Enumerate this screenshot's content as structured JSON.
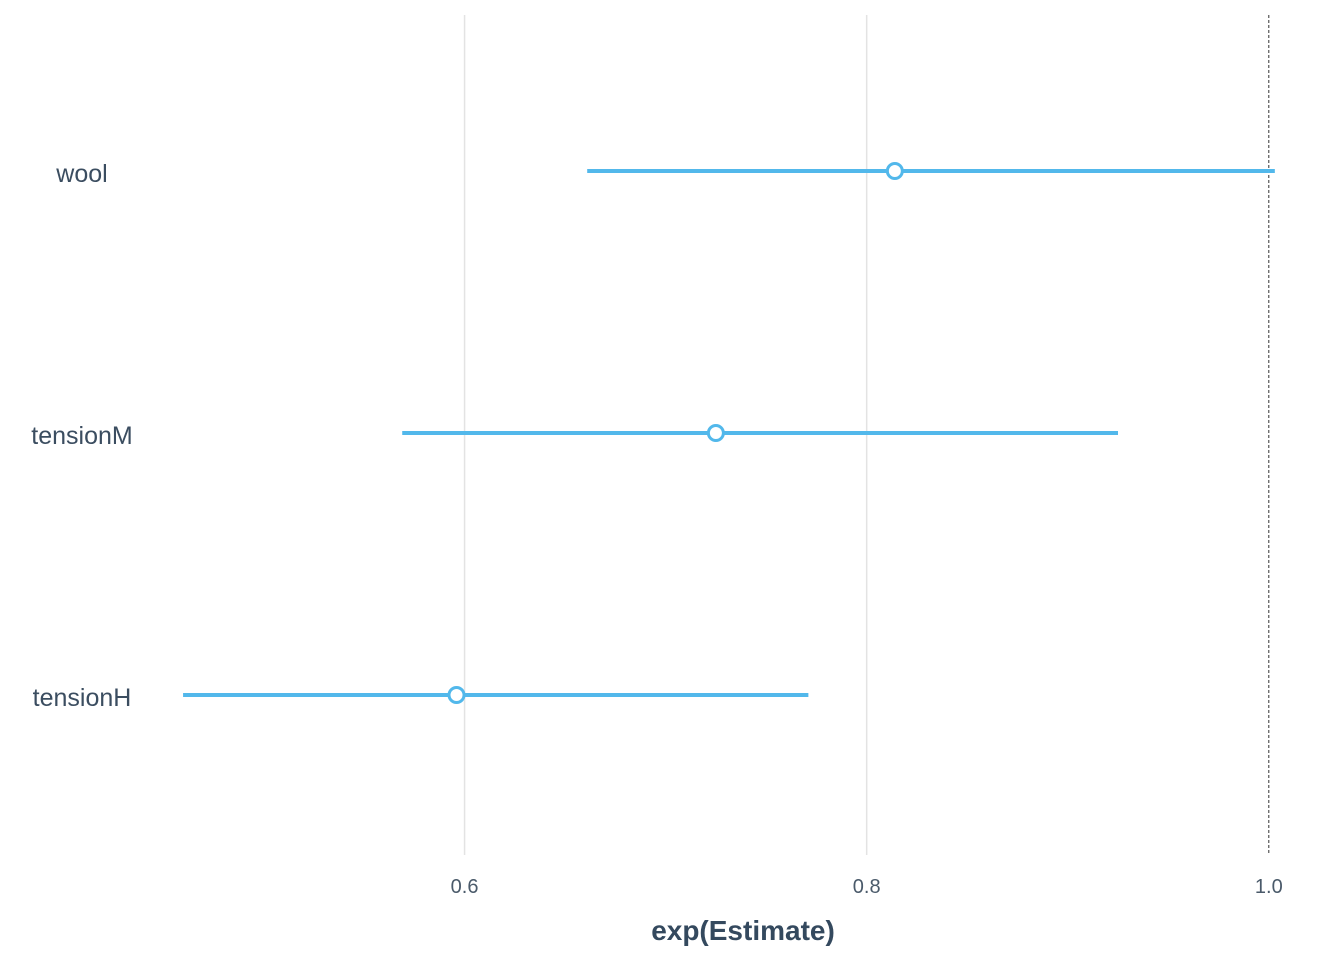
{
  "chart_data": {
    "type": "scatter",
    "chart_kind": "coefficient plot with confidence intervals",
    "xlabel": "exp(Estimate)",
    "ylabel": "",
    "title": "",
    "xlim": [
      0.4535,
      1.0185
    ],
    "x_ticks": [
      {
        "value": 0.6,
        "label": "0.6"
      },
      {
        "value": 0.8,
        "label": "0.8"
      },
      {
        "value": 1.0,
        "label": "1.0"
      }
    ],
    "reference_line": {
      "value": 1.0,
      "style": "dashed"
    },
    "grid": "vertical major only",
    "legend": "none",
    "terms": [
      {
        "name": "wool",
        "estimate": 0.814,
        "conf_low": 0.661,
        "conf_high": 1.003
      },
      {
        "name": "tensionM",
        "estimate": 0.725,
        "conf_low": 0.569,
        "conf_high": 0.925
      },
      {
        "name": "tensionH",
        "estimate": 0.596,
        "conf_low": 0.46,
        "conf_high": 0.771
      }
    ],
    "colors": {
      "series": "#52b8eb",
      "grid": "#e3e3e3",
      "reference": "#333333",
      "text": "#3b4d60"
    }
  }
}
